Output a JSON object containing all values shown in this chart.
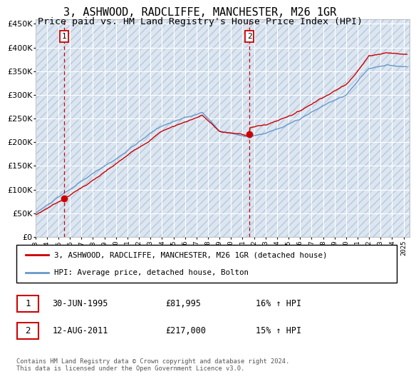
{
  "title": "3, ASHWOOD, RADCLIFFE, MANCHESTER, M26 1GR",
  "subtitle": "Price paid vs. HM Land Registry's House Price Index (HPI)",
  "ylim": [
    0,
    460000
  ],
  "yticks": [
    0,
    50000,
    100000,
    150000,
    200000,
    250000,
    300000,
    350000,
    400000,
    450000
  ],
  "xlim_start": 1993.0,
  "xlim_end": 2025.5,
  "xtick_years": [
    1993,
    1994,
    1995,
    1996,
    1997,
    1998,
    1999,
    2000,
    2001,
    2002,
    2003,
    2004,
    2005,
    2006,
    2007,
    2008,
    2009,
    2010,
    2011,
    2012,
    2013,
    2014,
    2015,
    2016,
    2017,
    2018,
    2019,
    2020,
    2021,
    2022,
    2023,
    2024,
    2025
  ],
  "sale1_x": 1995.5,
  "sale1_y": 81995,
  "sale2_x": 2011.6,
  "sale2_y": 217000,
  "vline1_x": 1995.5,
  "vline2_x": 2011.6,
  "sale_color": "#cc0000",
  "hpi_color": "#6699cc",
  "bg_color": "#dce6f1",
  "hatch_edge_color": "#b8c8dc",
  "grid_color": "#ffffff",
  "legend_label1": "3, ASHWOOD, RADCLIFFE, MANCHESTER, M26 1GR (detached house)",
  "legend_label2": "HPI: Average price, detached house, Bolton",
  "table_row1": [
    "1",
    "30-JUN-1995",
    "£81,995",
    "16% ↑ HPI"
  ],
  "table_row2": [
    "2",
    "12-AUG-2011",
    "£217,000",
    "15% ↑ HPI"
  ],
  "footer": "Contains HM Land Registry data © Crown copyright and database right 2024.\nThis data is licensed under the Open Government Licence v3.0.",
  "title_fontsize": 11,
  "subtitle_fontsize": 9.5
}
